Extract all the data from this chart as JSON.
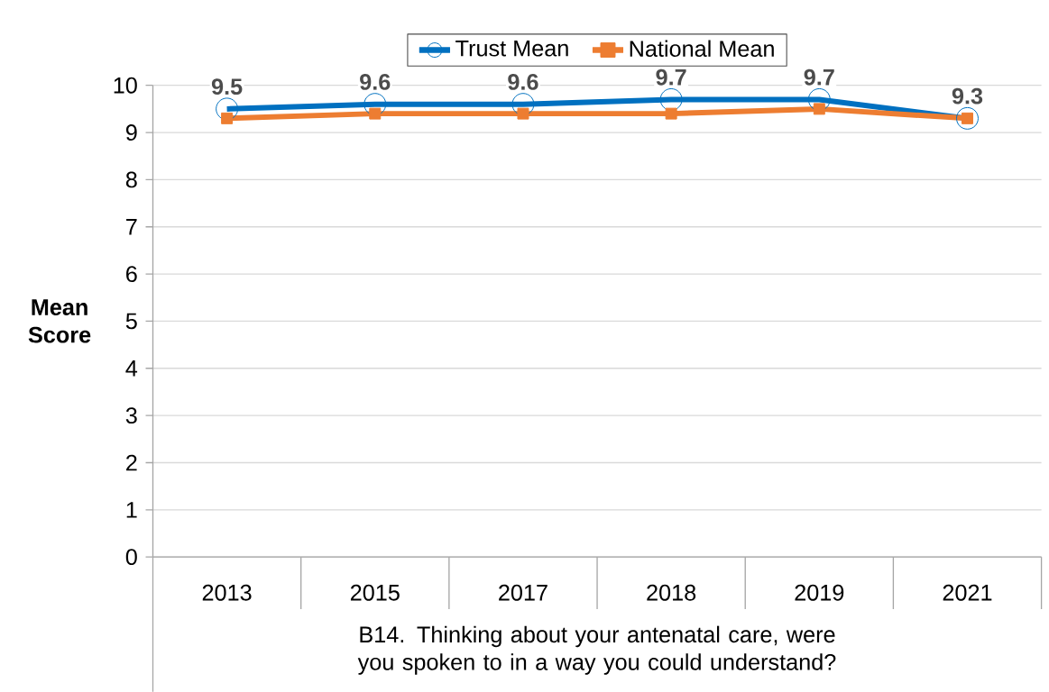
{
  "chart_data": {
    "type": "line",
    "categories": [
      "2013",
      "2015",
      "2017",
      "2018",
      "2019",
      "2021"
    ],
    "xlabel": "B14. Thinking about your antenatal care, were you spoken to in a way you could understand?",
    "ylabel": "Mean Score",
    "series": [
      {
        "name": "Trust Mean",
        "color": "#0070c0",
        "marker": "circle",
        "values": [
          9.5,
          9.6,
          9.6,
          9.7,
          9.7,
          9.3
        ],
        "value_labels": [
          "9.5",
          "9.6",
          "9.6",
          "9.7",
          "9.7",
          "9.3"
        ]
      },
      {
        "name": "National Mean",
        "color": "#ed7d31",
        "marker": "square",
        "values": [
          9.3,
          9.4,
          9.4,
          9.4,
          9.5,
          9.3
        ]
      }
    ],
    "ylim": [
      0,
      10
    ],
    "yticks": [
      0,
      1,
      2,
      3,
      4,
      5,
      6,
      7,
      8,
      9,
      10
    ],
    "grid": "y",
    "legend": "top"
  }
}
